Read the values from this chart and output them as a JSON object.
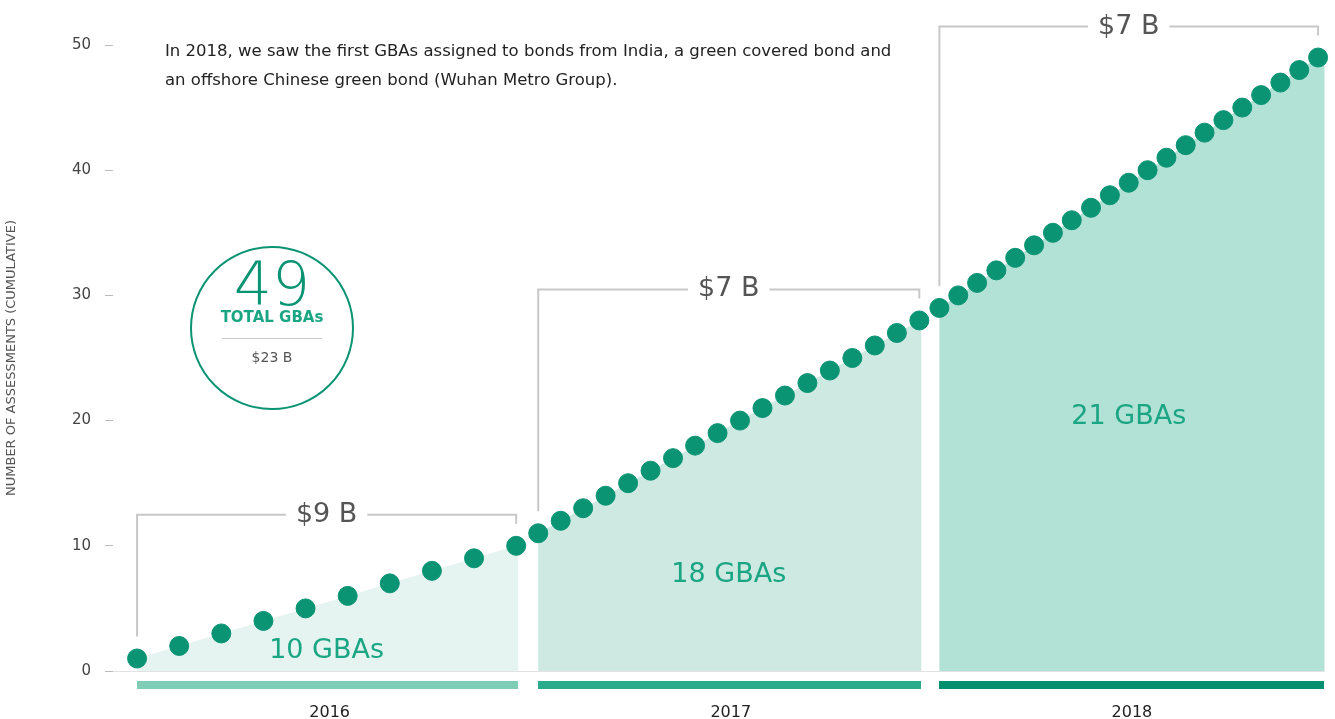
{
  "chart_data": {
    "type": "scatter",
    "ylabel": "NUMBER OF ASSESSMENTS (CUMULATIVE)",
    "xlim": [
      2015.94,
      2018.96
    ],
    "xticks": [
      {
        "value": 2016.48,
        "label": "2016"
      },
      {
        "value": 2017.48,
        "label": "2017"
      },
      {
        "value": 2018.48,
        "label": "2018"
      }
    ],
    "ylim": [
      0,
      50
    ],
    "yticks": [
      0,
      10,
      20,
      30,
      40,
      50
    ],
    "grid": false,
    "legend": false,
    "marker": "circle",
    "series": [
      {
        "color": "#0a9474",
        "x": [
          2016.0,
          2016.105,
          2016.21,
          2016.315,
          2016.42,
          2016.525,
          2016.63,
          2016.735,
          2016.84,
          2016.945,
          2017.0,
          2017.056,
          2017.112,
          2017.168,
          2017.224,
          2017.28,
          2017.336,
          2017.391,
          2017.447,
          2017.503,
          2017.559,
          2017.615,
          2017.671,
          2017.727,
          2017.783,
          2017.839,
          2017.894,
          2017.95,
          2018.0,
          2018.047,
          2018.094,
          2018.142,
          2018.189,
          2018.236,
          2018.283,
          2018.33,
          2018.378,
          2018.425,
          2018.472,
          2018.519,
          2018.566,
          2018.614,
          2018.661,
          2018.708,
          2018.755,
          2018.802,
          2018.85,
          2018.897,
          2018.944
        ],
        "values": [
          1,
          2,
          3,
          4,
          5,
          6,
          7,
          8,
          9,
          10,
          11,
          12,
          13,
          14,
          15,
          16,
          17,
          18,
          19,
          20,
          21,
          22,
          23,
          24,
          25,
          26,
          27,
          28,
          29,
          30,
          31,
          32,
          33,
          34,
          35,
          36,
          37,
          38,
          39,
          40,
          41,
          42,
          43,
          44,
          45,
          46,
          47,
          48,
          49
        ]
      }
    ],
    "annotations": [
      "In 2018, we saw the first GBAs assigned to bonds from India, a green covered bond and an offshore Chinese green bond (Wuhan Metro Group).",
      "49",
      "TOTAL GBAs",
      "$23 B",
      "$9 B",
      "$7 B",
      "$7 B",
      "10 GBAs",
      "18 GBAs",
      "21 GBAs"
    ]
  }
}
